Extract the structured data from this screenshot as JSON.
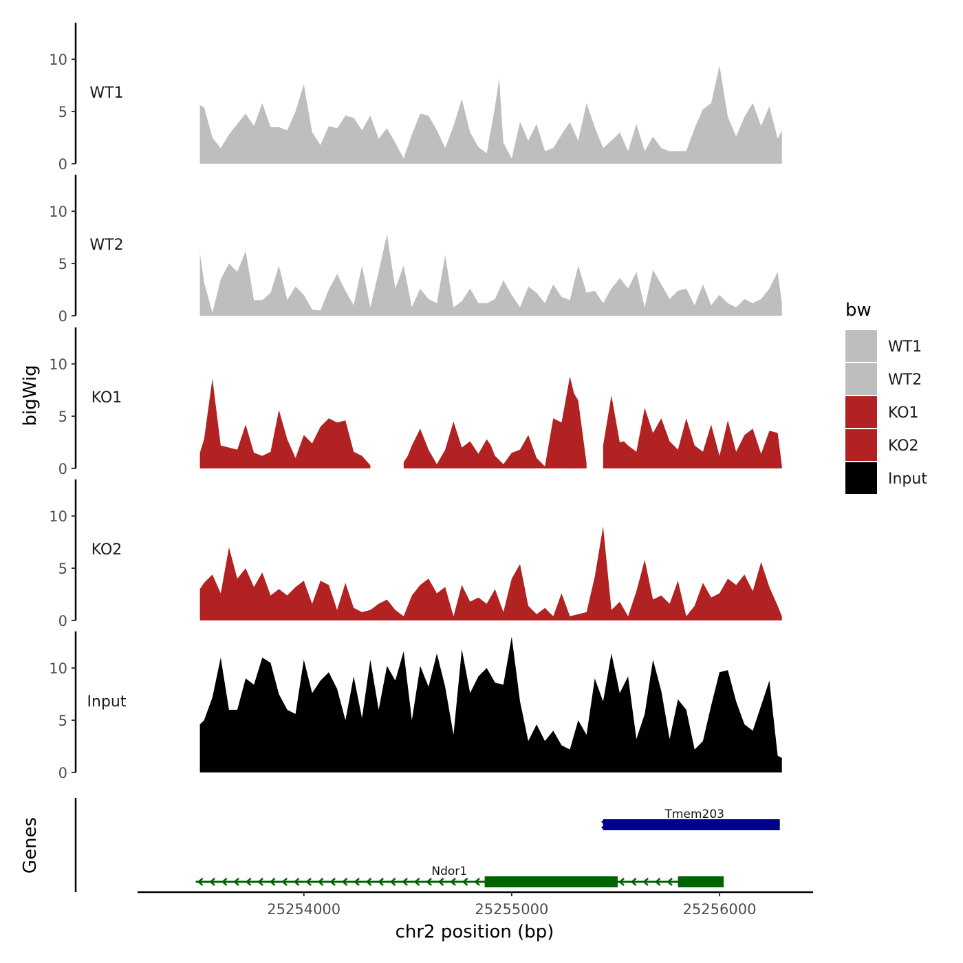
{
  "chart_data": {
    "type": "area",
    "x_axis": {
      "label": "chr2 position (bp)",
      "range": [
        25253200,
        25256450
      ],
      "ticks": [
        25254000,
        25255000,
        25256000
      ],
      "tick_labels": [
        "25254000",
        "25255000",
        "25256000"
      ]
    },
    "y_axis": {
      "label": "bigWig",
      "range": [
        0,
        13.5
      ],
      "ticks": [
        0,
        5,
        10
      ],
      "tick_labels": [
        "0",
        "5",
        "10"
      ]
    },
    "legend": {
      "title": "bw",
      "position": "right",
      "entries": [
        {
          "label": "WT1",
          "color": "#bebebe"
        },
        {
          "label": "WT2",
          "color": "#bebebe"
        },
        {
          "label": "KO1",
          "color": "#b22222"
        },
        {
          "label": "KO2",
          "color": "#b22222"
        },
        {
          "label": "Input",
          "color": "#000000"
        }
      ]
    },
    "series": [
      {
        "name": "WT1",
        "color": "#bebebe",
        "x": [
          25253500,
          25253520,
          25253560,
          25253600,
          25253640,
          25253680,
          25253720,
          25253760,
          25253800,
          25253840,
          25253880,
          25253920,
          25253960,
          25254000,
          25254040,
          25254080,
          25254120,
          25254160,
          25254200,
          25254240,
          25254280,
          25254320,
          25254360,
          25254400,
          25254440,
          25254480,
          25254520,
          25254560,
          25254600,
          25254640,
          25254680,
          25254720,
          25254760,
          25254800,
          25254840,
          25254880,
          25254920,
          25254940,
          25254960,
          25255000,
          25255040,
          25255080,
          25255120,
          25255160,
          25255200,
          25255240,
          25255280,
          25255320,
          25255360,
          25255400,
          25255440,
          25255480,
          25255520,
          25255560,
          25255600,
          25255640,
          25255680,
          25255720,
          25255760,
          25255800,
          25255840,
          25255880,
          25255920,
          25255960,
          25256000,
          25256040,
          25256080,
          25256120,
          25256160,
          25256200,
          25256240,
          25256280,
          25256300
        ],
        "values": [
          5.6,
          5.4,
          2.5,
          1.5,
          2.8,
          3.8,
          4.8,
          3.6,
          5.8,
          3.5,
          3.5,
          3.2,
          5.0,
          7.6,
          3.0,
          1.8,
          3.6,
          3.4,
          4.6,
          4.4,
          3.2,
          4.6,
          2.4,
          3.4,
          2.0,
          0.5,
          2.8,
          4.8,
          4.6,
          3.2,
          1.5,
          3.6,
          6.2,
          3.0,
          1.6,
          1.0,
          5.5,
          8.2,
          2.0,
          0.5,
          4.0,
          2.2,
          3.8,
          1.2,
          1.5,
          2.8,
          4.0,
          2.2,
          5.8,
          3.5,
          1.5,
          2.2,
          3.0,
          1.2,
          3.8,
          1.2,
          2.6,
          1.5,
          1.2,
          1.2,
          1.2,
          3.4,
          5.2,
          5.8,
          9.4,
          4.5,
          2.6,
          4.5,
          5.8,
          3.6,
          5.5,
          2.4,
          3.2
        ]
      },
      {
        "name": "WT2",
        "color": "#bebebe",
        "x": [
          25253500,
          25253520,
          25253560,
          25253600,
          25253640,
          25253680,
          25253720,
          25253760,
          25253800,
          25253840,
          25253880,
          25253920,
          25253960,
          25254000,
          25254040,
          25254080,
          25254120,
          25254160,
          25254200,
          25254240,
          25254280,
          25254320,
          25254360,
          25254400,
          25254440,
          25254480,
          25254520,
          25254560,
          25254600,
          25254640,
          25254680,
          25254720,
          25254760,
          25254800,
          25254840,
          25254880,
          25254920,
          25254960,
          25255000,
          25255040,
          25255080,
          25255120,
          25255160,
          25255200,
          25255240,
          25255280,
          25255320,
          25255360,
          25255400,
          25255440,
          25255480,
          25255520,
          25255560,
          25255600,
          25255640,
          25255680,
          25255720,
          25255760,
          25255800,
          25255840,
          25255880,
          25255920,
          25255960,
          25256000,
          25256040,
          25256080,
          25256120,
          25256160,
          25256200,
          25256240,
          25256280,
          25256300
        ],
        "values": [
          6.0,
          3.2,
          0.3,
          3.5,
          5.0,
          4.2,
          6.2,
          1.5,
          1.5,
          2.2,
          4.8,
          1.5,
          2.8,
          2.0,
          0.6,
          0.5,
          2.5,
          4.0,
          2.4,
          1.0,
          4.8,
          0.8,
          4.2,
          7.8,
          2.6,
          4.8,
          0.8,
          2.6,
          1.6,
          1.2,
          5.8,
          0.8,
          1.4,
          2.6,
          1.2,
          1.2,
          1.6,
          3.4,
          2.0,
          0.8,
          2.8,
          2.2,
          1.2,
          3.0,
          1.8,
          1.5,
          4.8,
          2.2,
          2.4,
          1.2,
          2.6,
          3.6,
          2.6,
          4.2,
          0.8,
          4.4,
          3.0,
          1.6,
          2.4,
          2.6,
          1.0,
          3.0,
          1.0,
          2.0,
          1.2,
          0.8,
          1.6,
          1.2,
          1.6,
          2.6,
          4.2,
          1.2
        ]
      },
      {
        "name": "KO1",
        "color": "#b22222",
        "x": [
          25253500,
          25253520,
          25253560,
          25253600,
          25253640,
          25253680,
          25253720,
          25253760,
          25253800,
          25253840,
          25253880,
          25253920,
          25253960,
          25254000,
          25254040,
          25254080,
          25254120,
          25254160,
          25254200,
          25254240,
          25254280,
          25254320,
          25254360,
          25254400,
          25254440,
          25254480,
          25254500,
          25254520,
          25254560,
          25254600,
          25254640,
          25254680,
          25254720,
          25254760,
          25254800,
          25254840,
          25254880,
          25254900,
          25254920,
          25254960,
          25255000,
          25255040,
          25255080,
          25255120,
          25255160,
          25255200,
          25255240,
          25255280,
          25255300,
          25255320,
          25255360,
          25255400,
          25255440,
          25255480,
          25255520,
          25255540,
          25255560,
          25255600,
          25255640,
          25255680,
          25255720,
          25255760,
          25255800,
          25255840,
          25255880,
          25255920,
          25255960,
          25256000,
          25256040,
          25256080,
          25256120,
          25256160,
          25256200,
          25256240,
          25256280,
          25256300
        ],
        "values": [
          1.5,
          2.8,
          8.6,
          2.2,
          2.0,
          1.8,
          4.2,
          1.5,
          1.2,
          1.6,
          5.6,
          2.8,
          1.0,
          3.2,
          2.4,
          4.0,
          4.8,
          4.4,
          4.6,
          1.6,
          1.2,
          0.3,
          null,
          null,
          null,
          0.6,
          1.2,
          2.2,
          3.8,
          1.8,
          0.4,
          1.8,
          4.5,
          2.0,
          2.6,
          1.4,
          2.8,
          2.2,
          1.2,
          0.4,
          1.5,
          1.8,
          3.2,
          1.0,
          0.2,
          4.8,
          4.4,
          8.8,
          7.2,
          6.5,
          0.5,
          null,
          2.2,
          7.0,
          2.5,
          2.6,
          2.2,
          1.6,
          5.8,
          3.4,
          4.8,
          2.6,
          1.8,
          4.8,
          2.2,
          1.6,
          4.2,
          1.2,
          4.6,
          1.6,
          3.2,
          3.8,
          1.4,
          3.6,
          3.4,
          0.3
        ]
      },
      {
        "name": "KO2",
        "color": "#b22222",
        "x": [
          25253500,
          25253520,
          25253560,
          25253600,
          25253640,
          25253680,
          25253720,
          25253760,
          25253800,
          25253840,
          25253880,
          25253920,
          25253960,
          25254000,
          25254040,
          25254080,
          25254120,
          25254160,
          25254200,
          25254240,
          25254280,
          25254320,
          25254360,
          25254400,
          25254440,
          25254480,
          25254520,
          25254560,
          25254600,
          25254640,
          25254680,
          25254720,
          25254760,
          25254800,
          25254840,
          25254880,
          25254920,
          25254960,
          25255000,
          25255040,
          25255080,
          25255120,
          25255160,
          25255200,
          25255240,
          25255280,
          25255320,
          25255360,
          25255400,
          25255440,
          25255480,
          25255520,
          25255560,
          25255600,
          25255640,
          25255680,
          25255720,
          25255760,
          25255800,
          25255840,
          25255880,
          25255920,
          25255960,
          25256000,
          25256040,
          25256080,
          25256120,
          25256160,
          25256200,
          25256240,
          25256280,
          25256300
        ],
        "values": [
          3.0,
          3.6,
          4.4,
          2.6,
          7.0,
          4.0,
          5.0,
          3.2,
          4.6,
          2.4,
          3.0,
          2.4,
          3.2,
          3.8,
          1.6,
          3.8,
          3.4,
          1.0,
          3.6,
          1.2,
          0.8,
          1.0,
          1.6,
          2.0,
          1.0,
          0.4,
          2.4,
          3.4,
          4.0,
          2.6,
          3.2,
          0.4,
          3.4,
          1.8,
          2.2,
          1.6,
          3.0,
          0.8,
          4.0,
          5.4,
          1.4,
          0.6,
          1.2,
          0.4,
          2.6,
          0.4,
          0.6,
          0.8,
          4.2,
          9.0,
          1.0,
          1.8,
          0.4,
          2.8,
          5.8,
          2.0,
          2.4,
          1.6,
          3.8,
          0.4,
          1.4,
          3.6,
          2.2,
          2.6,
          4.0,
          3.4,
          4.4,
          2.8,
          5.6,
          3.2,
          1.4,
          0.4
        ]
      },
      {
        "name": "Input",
        "color": "#000000",
        "x": [
          25253500,
          25253520,
          25253560,
          25253600,
          25253640,
          25253680,
          25253720,
          25253760,
          25253800,
          25253840,
          25253880,
          25253920,
          25253960,
          25254000,
          25254040,
          25254080,
          25254120,
          25254160,
          25254200,
          25254240,
          25254280,
          25254320,
          25254360,
          25254400,
          25254440,
          25254480,
          25254520,
          25254560,
          25254600,
          25254640,
          25254680,
          25254720,
          25254760,
          25254800,
          25254840,
          25254880,
          25254920,
          25254960,
          25255000,
          25255040,
          25255080,
          25255120,
          25255160,
          25255200,
          25255240,
          25255280,
          25255320,
          25255360,
          25255400,
          25255440,
          25255480,
          25255520,
          25255560,
          25255600,
          25255640,
          25255680,
          25255720,
          25255760,
          25255800,
          25255840,
          25255880,
          25255920,
          25255960,
          25256000,
          25256040,
          25256080,
          25256120,
          25256160,
          25256200,
          25256240,
          25256280,
          25256300
        ],
        "values": [
          4.6,
          5.0,
          7.2,
          11.0,
          6.0,
          6.0,
          9.0,
          8.4,
          11.0,
          10.5,
          7.5,
          6.0,
          5.6,
          10.8,
          7.6,
          8.8,
          9.6,
          8.0,
          5.0,
          9.2,
          5.2,
          10.8,
          6.0,
          10.2,
          8.8,
          11.6,
          5.0,
          10.2,
          8.2,
          11.4,
          8.2,
          3.6,
          11.8,
          7.6,
          9.2,
          10.0,
          8.6,
          8.4,
          13.0,
          6.8,
          3.0,
          4.6,
          3.0,
          4.0,
          2.6,
          2.2,
          5.0,
          3.6,
          9.0,
          6.8,
          11.4,
          7.6,
          9.2,
          3.2,
          5.6,
          10.8,
          7.8,
          3.2,
          7.0,
          6.0,
          2.2,
          3.0,
          6.4,
          9.6,
          9.8,
          6.8,
          4.6,
          4.0,
          6.4,
          8.8,
          1.6,
          1.4
        ]
      }
    ],
    "genes_track": {
      "label": "Genes",
      "genes": [
        {
          "name": "Tmem203",
          "strand": "+",
          "color": "#00008b",
          "start": 25255440,
          "end": 25256290,
          "exons": [
            {
              "start": 25255440,
              "end": 25256290
            }
          ]
        },
        {
          "name": "Ndor1",
          "strand": "-",
          "color": "#006400",
          "start": 25253480,
          "end": 25256020,
          "exons": [
            {
              "start": 25254870,
              "end": 25255510
            },
            {
              "start": 25255800,
              "end": 25256020
            }
          ]
        }
      ]
    }
  }
}
